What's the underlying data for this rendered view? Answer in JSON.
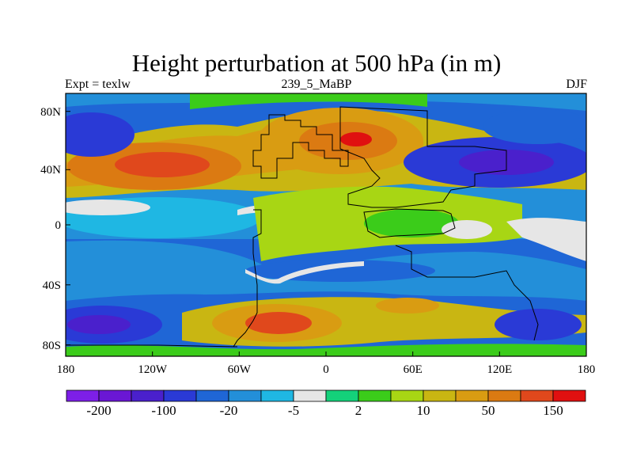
{
  "title": "Height perturbation at 500 hPa (in m)",
  "subtitle_left": "Expt = texlw",
  "subtitle_center": "239_5_MaBP",
  "subtitle_right": "DJF",
  "map_data": {
    "type": "contour-map",
    "variable": "500 hPa height perturbation",
    "units": "m",
    "lon_range": [
      -180,
      180
    ],
    "lat_range": [
      -90,
      90
    ],
    "x_ticks": [
      "180",
      "120W",
      "60W",
      "0",
      "60E",
      "120E",
      "180"
    ],
    "y_ticks": [
      "80N",
      "40N",
      "0",
      "40S",
      "80S"
    ],
    "features": [
      {
        "name": "max-north-asia",
        "lon": 20,
        "lat": 60,
        "level": "high"
      },
      {
        "name": "max-north-pacific",
        "lon": -120,
        "lat": 42,
        "level": "high"
      },
      {
        "name": "max-south-atlantic",
        "lon": -35,
        "lat": -67,
        "level": "high"
      },
      {
        "name": "min-north-pacific-west",
        "lon": 120,
        "lat": 45,
        "level": "low"
      },
      {
        "name": "min-north-pacific-east",
        "lon": -170,
        "lat": 60,
        "level": "low"
      },
      {
        "name": "min-southern-ocean",
        "lon": -160,
        "lat": -65,
        "level": "low"
      }
    ]
  },
  "colorbar": {
    "colors": [
      "#7d1fe8",
      "#6a17d4",
      "#4a20cc",
      "#2a3ad6",
      "#1f66d6",
      "#238fd9",
      "#1fb7e3",
      "#e6e6e6",
      "#14d17a",
      "#3bcc1a",
      "#a8d614",
      "#c9b612",
      "#d99c12",
      "#db7a12",
      "#e0481c",
      "#e01010"
    ],
    "labels": [
      {
        "text": "-200",
        "boundary": 1
      },
      {
        "text": "-100",
        "boundary": 3
      },
      {
        "text": "-20",
        "boundary": 5
      },
      {
        "text": "-5",
        "boundary": 7
      },
      {
        "text": "2",
        "boundary": 9
      },
      {
        "text": "10",
        "boundary": 11
      },
      {
        "text": "50",
        "boundary": 13
      },
      {
        "text": "150",
        "boundary": 15
      }
    ]
  }
}
